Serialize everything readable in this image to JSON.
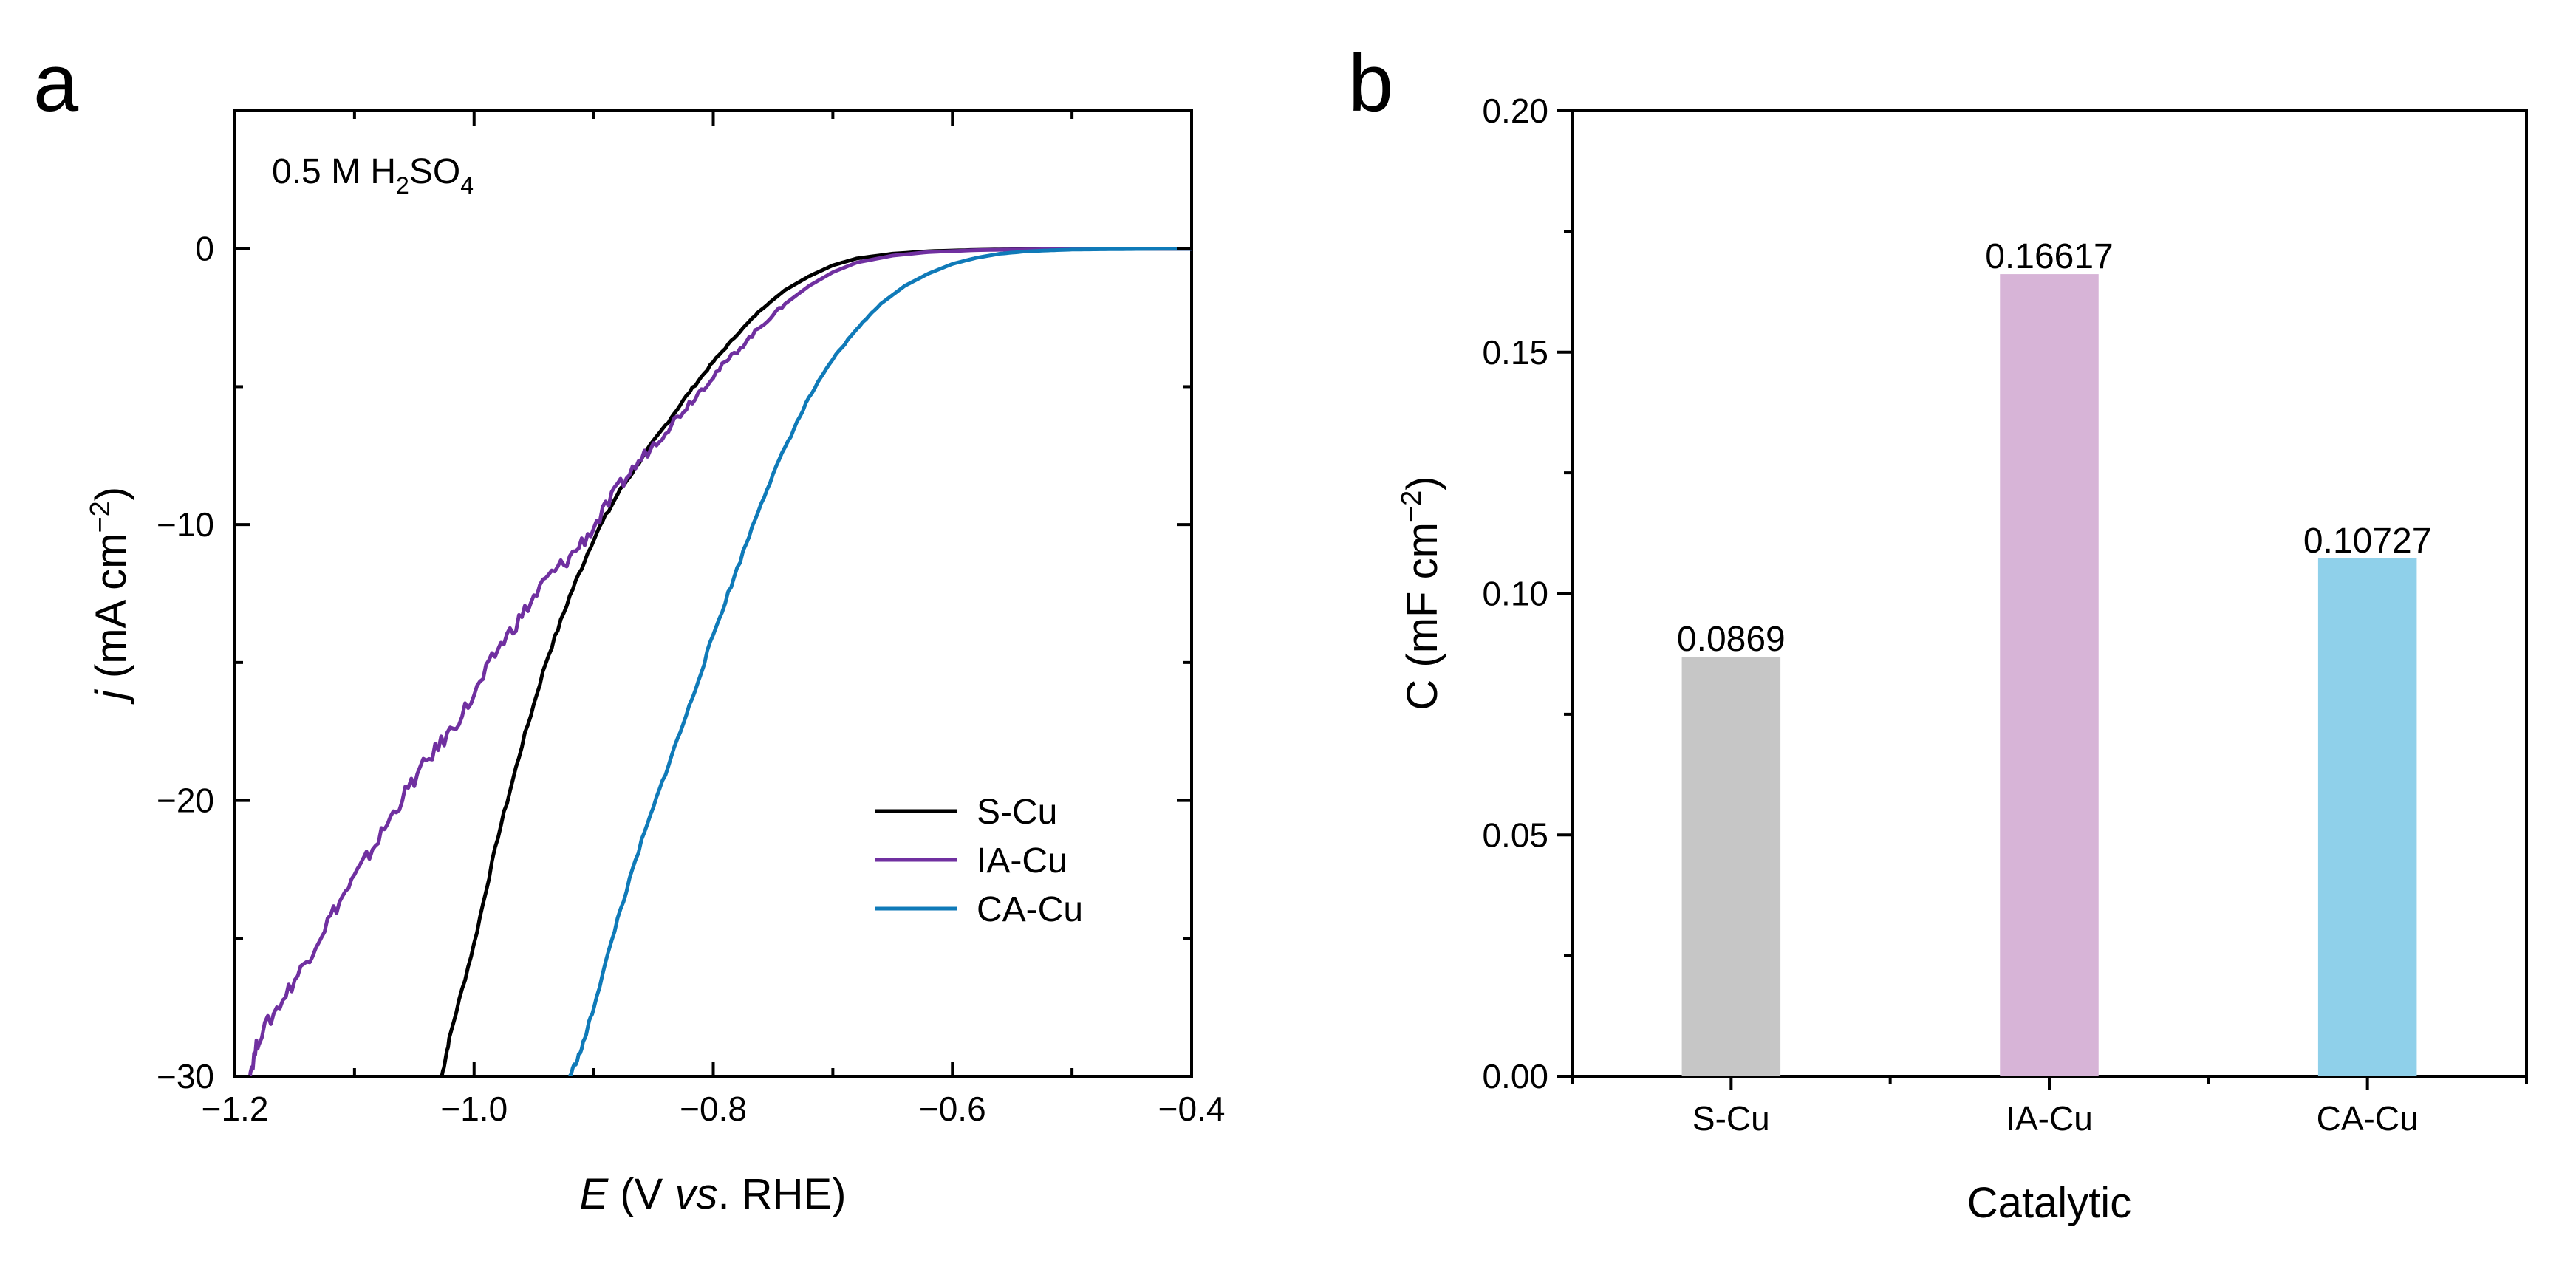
{
  "panels": {
    "a": "a",
    "b": "b"
  },
  "chart_data": [
    {
      "type": "line",
      "panel": "a",
      "annotation": {
        "prefix": "0.5 M H",
        "sub1": "2",
        "mid": "SO",
        "sub2": "4"
      },
      "xlabel": {
        "var": "E",
        "open": " (V ",
        "vs": "vs",
        "close": ". RHE)"
      },
      "ylabel": {
        "var": "j",
        "text": " (mA cm",
        "exp": "−2",
        "close": ")"
      },
      "xlim": [
        -1.2,
        -0.4
      ],
      "ylim": [
        -30,
        5
      ],
      "x_ticks": [
        -1.2,
        -1.0,
        -0.8,
        -0.6,
        -0.4
      ],
      "x_tick_labels": [
        "−1.2",
        "−1.0",
        "−0.8",
        "−0.6",
        "−0.4"
      ],
      "y_ticks": [
        -30,
        -20,
        -10,
        0
      ],
      "y_tick_labels": [
        "−30",
        "−20",
        "−10",
        "0"
      ],
      "legend_position": "lower-right",
      "series": [
        {
          "name": "S-Cu",
          "color": "#000000",
          "x": [
            -1.027,
            -1.02,
            -1.0,
            -0.98,
            -0.96,
            -0.94,
            -0.92,
            -0.9,
            -0.88,
            -0.86,
            -0.84,
            -0.82,
            -0.8,
            -0.78,
            -0.76,
            -0.74,
            -0.72,
            -0.7,
            -0.68,
            -0.65,
            -0.62,
            -0.58,
            -0.55,
            -0.5,
            -0.45,
            -0.4
          ],
          "y": [
            -30,
            -28.5,
            -25.2,
            -21.3,
            -18.0,
            -15.0,
            -12.6,
            -10.5,
            -8.9,
            -7.6,
            -6.4,
            -5.2,
            -4.1,
            -3.1,
            -2.2,
            -1.5,
            -1.0,
            -0.6,
            -0.35,
            -0.18,
            -0.09,
            -0.04,
            -0.02,
            -0.01,
            0,
            0
          ]
        },
        {
          "name": "IA-Cu",
          "color": "#7030A0",
          "x": [
            -1.188,
            -1.18,
            -1.16,
            -1.14,
            -1.12,
            -1.1,
            -1.08,
            -1.06,
            -1.04,
            -1.02,
            -1.0,
            -0.98,
            -0.96,
            -0.94,
            -0.92,
            -0.9,
            -0.88,
            -0.86,
            -0.84,
            -0.82,
            -0.8,
            -0.78,
            -0.76,
            -0.74,
            -0.72,
            -0.7,
            -0.68,
            -0.65,
            -0.62,
            -0.58,
            -0.55,
            -0.5,
            -0.45,
            -0.4
          ],
          "y": [
            -30,
            -28.6,
            -27.2,
            -25.8,
            -24.2,
            -22.8,
            -21.4,
            -19.9,
            -18.6,
            -17.5,
            -16.2,
            -14.5,
            -13.3,
            -12.0,
            -11.2,
            -10.1,
            -8.7,
            -7.6,
            -6.6,
            -5.6,
            -4.6,
            -3.7,
            -2.8,
            -2.0,
            -1.35,
            -0.85,
            -0.5,
            -0.25,
            -0.12,
            -0.05,
            -0.03,
            -0.01,
            0,
            0
          ]
        },
        {
          "name": "CA-Cu",
          "color": "#0F7AB8",
          "x": [
            -0.92,
            -0.91,
            -0.9,
            -0.88,
            -0.86,
            -0.84,
            -0.82,
            -0.8,
            -0.78,
            -0.76,
            -0.74,
            -0.72,
            -0.7,
            -0.68,
            -0.66,
            -0.64,
            -0.62,
            -0.6,
            -0.58,
            -0.56,
            -0.54,
            -0.52,
            -0.5,
            -0.48,
            -0.45,
            -0.42,
            -0.4
          ],
          "y": [
            -30,
            -29.0,
            -27.5,
            -24.3,
            -21.5,
            -19.0,
            -16.6,
            -14.0,
            -11.6,
            -9.2,
            -7.2,
            -5.4,
            -4.0,
            -2.9,
            -2.0,
            -1.35,
            -0.9,
            -0.55,
            -0.33,
            -0.18,
            -0.1,
            -0.06,
            -0.03,
            -0.02,
            -0.01,
            0,
            0
          ]
        }
      ]
    },
    {
      "type": "bar",
      "panel": "b",
      "xlabel": "Catalytic",
      "ylabel": {
        "text": "C (mF cm",
        "exp": "−2",
        "close": ")"
      },
      "ylim": [
        0,
        0.2
      ],
      "y_ticks": [
        0,
        0.05,
        0.1,
        0.15,
        0.2
      ],
      "y_tick_labels": [
        "0.00",
        "0.05",
        "0.10",
        "0.15",
        "0.20"
      ],
      "categories": [
        "S-Cu",
        "IA-Cu",
        "CA-Cu"
      ],
      "values": [
        0.0869,
        0.16617,
        0.10727
      ],
      "value_labels": [
        "0.0869",
        "0.16617",
        "0.10727"
      ],
      "colors": [
        "#C6C6C6",
        "#D7B4D7",
        "#8FD0EA"
      ]
    }
  ]
}
